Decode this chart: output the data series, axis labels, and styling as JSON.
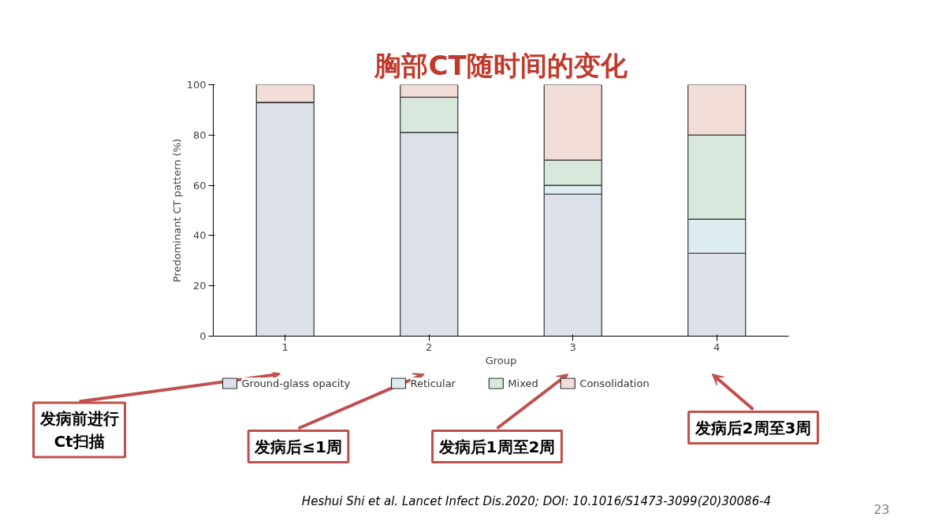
{
  "chart_data": {
    "type": "bar",
    "stacked": true,
    "title": "胸部CT随时间的变化",
    "xlabel": "Group",
    "ylabel": "Predominant CT pattern (%)",
    "categories": [
      "1",
      "2",
      "3",
      "4"
    ],
    "series": [
      {
        "name": "Ground-glass opacity",
        "color": "#dde1ea",
        "values": [
          93,
          81,
          56.5,
          33
        ]
      },
      {
        "name": "Reticular",
        "color": "#dcecef",
        "values": [
          0,
          0,
          3.5,
          13.5
        ]
      },
      {
        "name": "Mixed",
        "color": "#d9e8dc",
        "values": [
          0,
          14,
          10,
          33.5
        ]
      },
      {
        "name": "Consolidation",
        "color": "#f3ddd8",
        "values": [
          7,
          5,
          30,
          20
        ]
      }
    ],
    "ylim": [
      0,
      100
    ],
    "yticks": [
      0,
      20,
      40,
      60,
      80,
      100
    ],
    "grid": false,
    "legend": "bottom",
    "annotations": [
      "发病前进行\nCt扫描",
      "发病后≤1周",
      "发病后1周至2周",
      "发病后2周至3周",
      "Heshui Shi et al. Lancet Infect Dis.2020; DOI: 10.1016/S1473-3099(20)30086-4",
      "23"
    ]
  }
}
